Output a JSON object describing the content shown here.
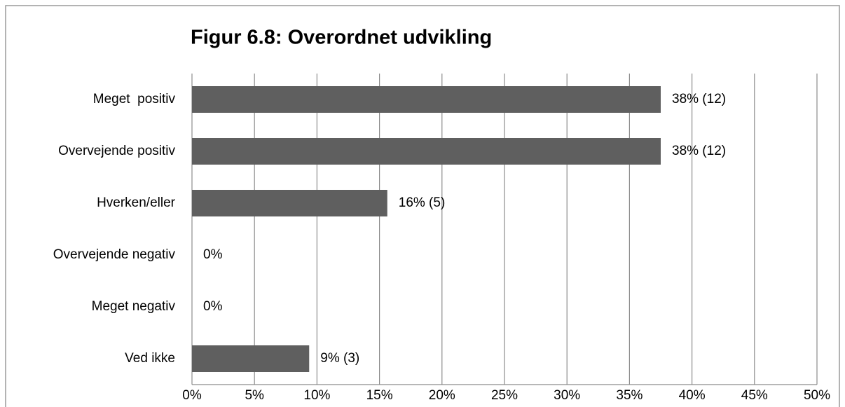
{
  "chart_data": {
    "type": "barh",
    "title": "Figur 6.8: Overordnet udvikling",
    "categories": [
      "Meget  positiv",
      "Overvejende positiv",
      "Hverken/eller",
      "Overvejende negativ",
      "Meget negativ",
      "Ved ikke"
    ],
    "values": [
      37.5,
      37.5,
      15.625,
      0,
      0,
      9.375
    ],
    "value_labels": [
      "38% (12)",
      "38% (12)",
      "16% (5)",
      "0%",
      "0%",
      "9% (3)"
    ],
    "color": "#5f5f5f",
    "xlim": [
      0,
      50
    ],
    "xticks": [
      {
        "value": 0,
        "label": "0%"
      },
      {
        "value": 5,
        "label": "5%"
      },
      {
        "value": 10,
        "label": "10%"
      },
      {
        "value": 15,
        "label": "15%"
      },
      {
        "value": 20,
        "label": "20%"
      },
      {
        "value": 25,
        "label": "25%"
      },
      {
        "value": 30,
        "label": "30%"
      },
      {
        "value": 35,
        "label": "35%"
      },
      {
        "value": 40,
        "label": "40%"
      },
      {
        "value": 45,
        "label": "45%"
      },
      {
        "value": 50,
        "label": "50%"
      }
    ],
    "grid": true
  }
}
